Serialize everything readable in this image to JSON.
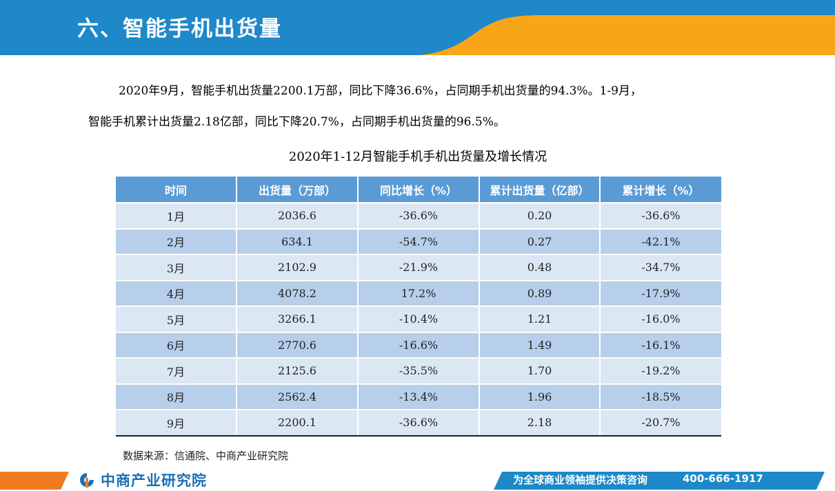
{
  "colors": {
    "header_blue": "#1e88c8",
    "accent_orange": "#f9a51a",
    "table_header": "#5b9bd5",
    "row_light": "#dce7f4",
    "row_dark": "#b7cfea",
    "logo_blue": "#1d6fb5"
  },
  "header": {
    "title": "六、智能手机出货量"
  },
  "intro": {
    "paragraph_1": "2020年9月，智能手机出货量2200.1万部，同比下降36.6%，占同期手机出货量的94.3%。1-9月，",
    "paragraph_2": "智能手机累计出货量2.18亿部，同比下降20.7%，占同期手机出货量的96.5%。"
  },
  "table": {
    "title": "2020年1-12月智能手机手机出货量及增长情况",
    "columns": [
      "时间",
      "出货量（万部）",
      "同比增长（%）",
      "累计出货量（亿部）",
      "累计增长（%）"
    ],
    "rows": [
      [
        "1月",
        "2036.6",
        "-36.6%",
        "0.20",
        "-36.6%"
      ],
      [
        "2月",
        "634.1",
        "-54.7%",
        "0.27",
        "-42.1%"
      ],
      [
        "3月",
        "2102.9",
        "-21.9%",
        "0.48",
        "-34.7%"
      ],
      [
        "4月",
        "4078.2",
        "17.2%",
        "0.89",
        "-17.9%"
      ],
      [
        "5月",
        "3266.1",
        "-10.4%",
        "1.21",
        "-16.0%"
      ],
      [
        "6月",
        "2770.6",
        "-16.6%",
        "1.49",
        "-16.1%"
      ],
      [
        "7月",
        "2125.6",
        "-35.5%",
        "1.70",
        "-19.2%"
      ],
      [
        "8月",
        "2562.4",
        "-13.4%",
        "1.96",
        "-18.5%"
      ],
      [
        "9月",
        "2200.1",
        "-36.6%",
        "2.18",
        "-20.7%"
      ]
    ]
  },
  "source": {
    "text": "数据来源：信通院、中商产业研究院"
  },
  "footer": {
    "logo_text": "中商产业研究院",
    "slogan": "为全球商业领袖提供决策咨询",
    "phone": "400-666-1917"
  }
}
